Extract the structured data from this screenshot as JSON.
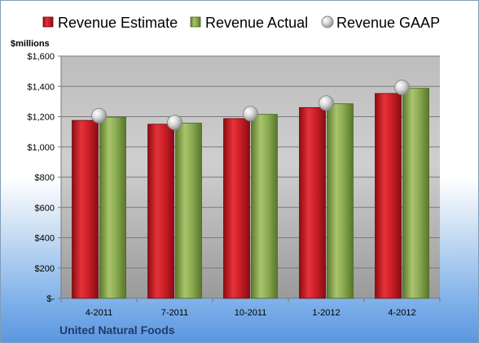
{
  "chart_data": {
    "type": "bar",
    "unit_label": "$millions",
    "footer": "United Natural Foods",
    "categories": [
      "4-2011",
      "7-2011",
      "10-2011",
      "1-2012",
      "4-2012"
    ],
    "series": [
      {
        "name": "Revenue Estimate",
        "kind": "bar",
        "color": "#d0202a",
        "values": [
          1175,
          1150,
          1187,
          1260,
          1353
        ]
      },
      {
        "name": "Revenue Actual",
        "kind": "bar",
        "color": "#8eae55",
        "values": [
          1197,
          1157,
          1215,
          1285,
          1387
        ]
      },
      {
        "name": "Revenue GAAP",
        "kind": "marker",
        "color": "#c0c0c0",
        "values": [
          1207,
          1162,
          1220,
          1290,
          1393
        ]
      }
    ],
    "ylim": [
      0,
      1600
    ],
    "yticks": [
      0,
      200,
      400,
      600,
      800,
      1000,
      1200,
      1400,
      1600
    ],
    "ytick_labels": [
      "$-",
      "$200",
      "$400",
      "$600",
      "$800",
      "$1,000",
      "$1,200",
      "$1,400",
      "$1,600"
    ],
    "grid": true,
    "legend_position": "top"
  }
}
